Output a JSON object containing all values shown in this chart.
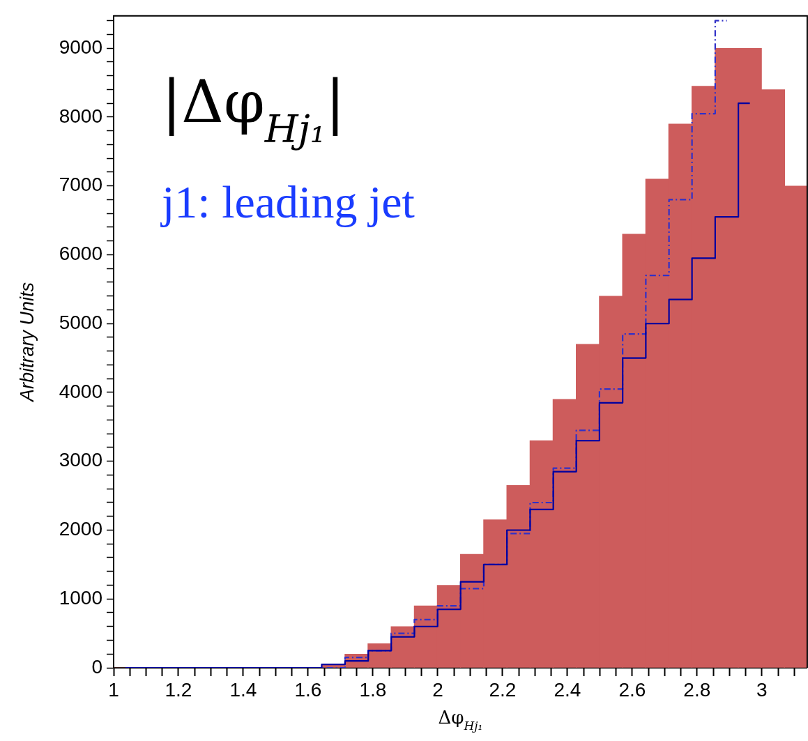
{
  "chart_data": {
    "type": "histogram",
    "xlabel": "Δφ$_{Hj₁}$",
    "ylabel": "Arbitrary Units",
    "annotations": [
      "|Δφ$_{Hj₁}$|",
      "j1: leading jet"
    ],
    "bins": [
      1.0,
      1.071,
      1.142,
      1.214,
      1.285,
      1.357,
      1.428,
      1.499,
      1.571,
      1.642,
      1.714,
      1.785,
      1.856,
      1.928,
      1.999,
      2.07,
      2.142,
      2.213,
      2.285,
      2.356,
      2.427,
      2.499,
      2.57,
      2.642,
      2.713,
      2.784,
      2.856,
      2.927,
      2.999,
      3.07,
      3.14
    ],
    "series": [
      {
        "color": "#cd5c5c",
        "values": [
          0,
          0,
          0,
          0,
          0,
          0,
          0,
          0,
          0,
          50,
          200,
          350,
          600,
          900,
          1200,
          1650,
          2150,
          2650,
          3300,
          3900,
          4700,
          5400,
          6300,
          7100,
          7900,
          8450,
          9000,
          9000,
          8400,
          7000
        ]
      },
      {
        "type": "step",
        "color": "#0000a0",
        "line_style": "solid",
        "x": [
          1.036,
          1.107,
          1.178,
          1.25,
          1.321,
          1.393,
          1.464,
          1.535,
          1.606,
          1.678,
          1.75,
          1.821,
          1.892,
          1.964,
          2.035,
          2.106,
          2.178,
          2.249,
          2.321,
          2.392,
          2.463,
          2.535,
          2.606,
          2.678,
          2.749,
          2.82,
          2.892,
          2.963
        ],
        "values": [
          0,
          0,
          0,
          0,
          0,
          0,
          0,
          0,
          0,
          50,
          100,
          250,
          450,
          600,
          850,
          1250,
          1500,
          2000,
          2300,
          2850,
          3300,
          3850,
          4500,
          5000,
          5350,
          5950,
          6550,
          8200
        ]
      },
      {
        "type": "step",
        "color": "#3030c8",
        "line_style": "dashed",
        "x": [
          1.535,
          1.606,
          1.678,
          1.75,
          1.821,
          1.892,
          1.964,
          2.035,
          2.106,
          2.178,
          2.249,
          2.321,
          2.392,
          2.463,
          2.535,
          2.606,
          2.678,
          2.749,
          2.82,
          2.892
        ],
        "values": [
          0,
          0,
          0,
          150,
          250,
          500,
          700,
          900,
          1150,
          1500,
          1950,
          2400,
          2900,
          3450,
          4050,
          4850,
          5700,
          6800,
          8050,
          9400
        ]
      }
    ],
    "xlim": [
      1,
      3.14
    ],
    "xticks": [
      1,
      {
        "value": 1.05,
        "label": null
      },
      {
        "value": 1.1,
        "label": null
      },
      {
        "value": 1.15,
        "label": null
      },
      1.2,
      {
        "value": 1.25,
        "label": null
      },
      {
        "value": 1.3,
        "label": null
      },
      {
        "value": 1.35,
        "label": null
      },
      1.4,
      {
        "value": 1.45,
        "label": null
      },
      {
        "value": 1.5,
        "label": null
      },
      {
        "value": 1.55,
        "label": null
      },
      1.6,
      {
        "value": 1.65,
        "label": null
      },
      {
        "value": 1.7,
        "label": null
      },
      {
        "value": 1.75,
        "label": null
      },
      1.8,
      {
        "value": 1.85,
        "label": null
      },
      {
        "value": 1.9,
        "label": null
      },
      {
        "value": 1.95,
        "label": null
      },
      2,
      {
        "value": 2.05,
        "label": null
      },
      {
        "value": 2.1,
        "label": null
      },
      {
        "value": 2.15,
        "label": null
      },
      2.2,
      {
        "value": 2.25,
        "label": null
      },
      {
        "value": 2.3,
        "label": null
      },
      {
        "value": 2.35,
        "label": null
      },
      2.4,
      {
        "value": 2.45,
        "label": null
      },
      {
        "value": 2.5,
        "label": null
      },
      {
        "value": 2.55,
        "label": null
      },
      2.6,
      {
        "value": 2.65,
        "label": null
      },
      {
        "value": 2.7,
        "label": null
      },
      {
        "value": 2.75,
        "label": null
      },
      2.8,
      {
        "value": 2.85,
        "label": null
      },
      {
        "value": 2.9,
        "label": null
      },
      {
        "value": 2.95,
        "label": null
      },
      3,
      {
        "value": 3.05,
        "label": null
      },
      {
        "value": 3.1,
        "label": null
      }
    ],
    "ylim": [
      0,
      9470
    ],
    "yticks": [
      0,
      {
        "value": 200,
        "label": null
      },
      {
        "value": 400,
        "label": null
      },
      {
        "value": 600,
        "label": null
      },
      {
        "value": 800,
        "label": null
      },
      1000,
      {
        "value": 1200,
        "label": null
      },
      {
        "value": 1400,
        "label": null
      },
      {
        "value": 1600,
        "label": null
      },
      {
        "value": 1800,
        "label": null
      },
      2000,
      {
        "value": 2200,
        "label": null
      },
      {
        "value": 2400,
        "label": null
      },
      {
        "value": 2600,
        "label": null
      },
      {
        "value": 2800,
        "label": null
      },
      3000,
      {
        "value": 3200,
        "label": null
      },
      {
        "value": 3400,
        "label": null
      },
      {
        "value": 3600,
        "label": null
      },
      {
        "value": 3800,
        "label": null
      },
      4000,
      {
        "value": 4200,
        "label": null
      },
      {
        "value": 4400,
        "label": null
      },
      {
        "value": 4600,
        "label": null
      },
      {
        "value": 4800,
        "label": null
      },
      5000,
      {
        "value": 5200,
        "label": null
      },
      {
        "value": 5400,
        "label": null
      },
      {
        "value": 5600,
        "label": null
      },
      {
        "value": 5800,
        "label": null
      },
      6000,
      {
        "value": 6200,
        "label": null
      },
      {
        "value": 6400,
        "label": null
      },
      {
        "value": 6600,
        "label": null
      },
      {
        "value": 6800,
        "label": null
      },
      7000,
      {
        "value": 7200,
        "label": null
      },
      {
        "value": 7400,
        "label": null
      },
      {
        "value": 7600,
        "label": null
      },
      {
        "value": 7800,
        "label": null
      },
      8000,
      {
        "value": 8200,
        "label": null
      },
      {
        "value": 8400,
        "label": null
      },
      {
        "value": 8600,
        "label": null
      },
      {
        "value": 8800,
        "label": null
      },
      9000,
      {
        "value": 9200,
        "label": null
      },
      {
        "value": 9400,
        "label": null
      }
    ],
    "grid": false,
    "legend": false
  }
}
